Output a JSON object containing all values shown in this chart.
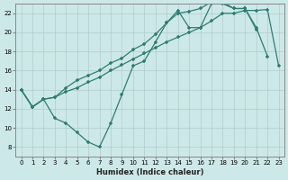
{
  "xlabel": "Humidex (Indice chaleur)",
  "background_color": "#cde8e8",
  "grid_color": "#b0cccc",
  "line_color": "#2e7d72",
  "xlim": [
    -0.5,
    23.5
  ],
  "ylim": [
    7.0,
    23.0
  ],
  "xticks": [
    0,
    1,
    2,
    3,
    4,
    5,
    6,
    7,
    8,
    9,
    10,
    11,
    12,
    13,
    14,
    15,
    16,
    17,
    18,
    19,
    20,
    21,
    22,
    23
  ],
  "yticks": [
    8,
    10,
    12,
    14,
    16,
    18,
    20,
    22
  ],
  "curve1_x": [
    0,
    1,
    2,
    3,
    4,
    5,
    6,
    7,
    8,
    9,
    10,
    11,
    12,
    13,
    14,
    15,
    16,
    17,
    18,
    19,
    20,
    21,
    22
  ],
  "curve1_y": [
    14.0,
    12.2,
    13.0,
    11.0,
    10.5,
    9.5,
    8.5,
    8.0,
    10.5,
    13.5,
    16.5,
    17.0,
    19.0,
    21.0,
    22.3,
    20.5,
    20.5,
    23.0,
    23.0,
    22.5,
    22.5,
    20.5,
    17.5
  ],
  "curve2_x": [
    0,
    1,
    2,
    3,
    4,
    5,
    6,
    7,
    8,
    9,
    10,
    11,
    12,
    13,
    14,
    15,
    16,
    17,
    18,
    19,
    20,
    21,
    22,
    23
  ],
  "curve2_y": [
    14.0,
    12.2,
    13.0,
    13.2,
    13.8,
    14.2,
    14.8,
    15.3,
    16.0,
    16.6,
    17.2,
    17.8,
    18.4,
    19.0,
    19.5,
    20.0,
    20.5,
    21.2,
    22.0,
    22.0,
    22.3,
    22.3,
    22.4,
    16.5
  ],
  "curve3_x": [
    0,
    1,
    2,
    3,
    4,
    5,
    6,
    7,
    8,
    9,
    10,
    11,
    12,
    13,
    14,
    15,
    16,
    17,
    18,
    19,
    20,
    21
  ],
  "curve3_y": [
    14.0,
    12.2,
    13.0,
    13.2,
    14.2,
    15.0,
    15.5,
    16.0,
    16.8,
    17.3,
    18.2,
    18.8,
    19.8,
    21.0,
    22.0,
    22.2,
    22.5,
    23.2,
    23.2,
    22.5,
    22.5,
    20.3
  ]
}
